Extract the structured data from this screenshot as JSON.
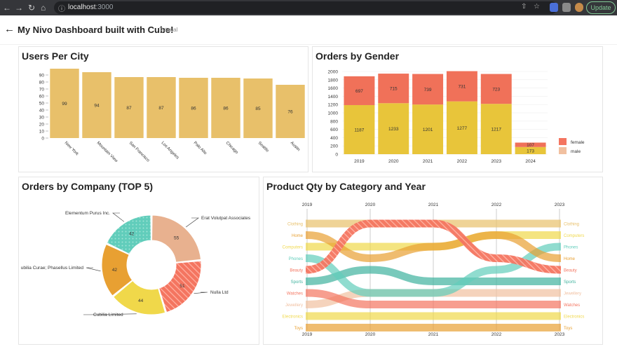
{
  "browser": {
    "url_host": "localhost",
    "url_port": ":3000",
    "update_label": "Update"
  },
  "header": {
    "title": "My Nivo Dashboard built with Cube!",
    "tag": "Tutorial"
  },
  "colors": {
    "bar_gold": "#e8c06a",
    "female": "#f07159",
    "male": "#e8c53a",
    "female_legend": "#f47560",
    "male_legend": "#f1c0a0",
    "donut": [
      "#e8b18f",
      "#f47560",
      "#f0d84a",
      "#e8a032",
      "#61cdbb"
    ]
  },
  "users_per_city": {
    "title": "Users Per City",
    "chart_data": {
      "type": "bar",
      "title": "Users Per City",
      "categories": [
        "New York",
        "Mountain View",
        "San Francisco",
        "Los Angeles",
        "Palo Alto",
        "Chicago",
        "Seattle",
        "Austin"
      ],
      "values": [
        99,
        94,
        87,
        87,
        86,
        86,
        85,
        76
      ],
      "yticks": [
        0,
        10,
        20,
        30,
        40,
        50,
        60,
        70,
        80,
        90
      ],
      "ylim": [
        0,
        100
      ]
    }
  },
  "orders_by_gender": {
    "title": "Orders by Gender",
    "chart_data": {
      "type": "bar",
      "title": "Orders by Gender",
      "stacked": true,
      "categories": [
        "2019",
        "2020",
        "2021",
        "2022",
        "2023",
        "2024"
      ],
      "series": [
        {
          "name": "male",
          "values": [
            1187,
            1233,
            1201,
            1277,
            1217,
            173
          ]
        },
        {
          "name": "female",
          "values": [
            697,
            715,
            739,
            731,
            723,
            107
          ]
        }
      ],
      "legend": [
        "female",
        "male"
      ],
      "yticks": [
        0,
        200,
        400,
        600,
        800,
        1000,
        1200,
        1400,
        1600,
        1800,
        2000
      ],
      "ylim": [
        0,
        2000
      ]
    }
  },
  "orders_by_company": {
    "title": "Orders by Company (TOP 5)",
    "chart_data": {
      "type": "pie",
      "title": "Orders by Company (TOP 5)",
      "slices": [
        {
          "label": "Erat Volutpat Associates",
          "value": 55
        },
        {
          "label": "Nulla Ltd",
          "value": 51
        },
        {
          "label": "Cubilia Limited",
          "value": 44
        },
        {
          "label": "ubilia Curae; Phasellus Limited",
          "value": 42
        },
        {
          "label": "Elementum Purus Inc.",
          "value": 42
        }
      ]
    }
  },
  "product_qty": {
    "title": "Product Qty by Category and Year",
    "chart_data": {
      "type": "bump",
      "title": "Product Qty by Category and Year",
      "years": [
        "2019",
        "2020",
        "2021",
        "2022",
        "2023"
      ],
      "series": [
        {
          "name": "Clothing",
          "color": "#e8c06a",
          "ranks": [
            1,
            1,
            1,
            1,
            1
          ]
        },
        {
          "name": "Home",
          "color": "#e8a032",
          "ranks": [
            2,
            4,
            3,
            2,
            4
          ]
        },
        {
          "name": "Computers",
          "color": "#f0d84a",
          "ranks": [
            3,
            3,
            3,
            2,
            2
          ]
        },
        {
          "name": "Phones",
          "color": "#61cdbb",
          "ranks": [
            4,
            7,
            7,
            5,
            3
          ]
        },
        {
          "name": "Beauty",
          "color": "#f47560",
          "ranks": [
            5,
            1,
            1,
            4,
            5
          ]
        },
        {
          "name": "Sports",
          "color": "#3fb29e",
          "ranks": [
            6,
            5,
            6,
            6,
            6
          ]
        },
        {
          "name": "Watches",
          "color": "#f47560",
          "ranks": [
            7,
            8,
            8,
            8,
            8
          ]
        },
        {
          "name": "Jewellery",
          "color": "#f1c0a0",
          "ranks": [
            8,
            7,
            7,
            7,
            7
          ]
        },
        {
          "name": "Electronics",
          "color": "#f0d84a",
          "ranks": [
            9,
            9,
            9,
            9,
            9
          ]
        },
        {
          "name": "Toys",
          "color": "#e8a032",
          "ranks": [
            10,
            10,
            10,
            10,
            10
          ]
        }
      ],
      "left_labels": [
        "Clothing",
        "Home",
        "Computers",
        "Phones",
        "Beauty",
        "Sports",
        "Watches",
        "Jewellery",
        "Electronics",
        "Toys"
      ],
      "right_labels": [
        "Clothing",
        "Computers",
        "Phones",
        "Home",
        "Beauty",
        "Sports",
        "Jewellery",
        "Watches",
        "Electronics",
        "Toys"
      ]
    }
  }
}
